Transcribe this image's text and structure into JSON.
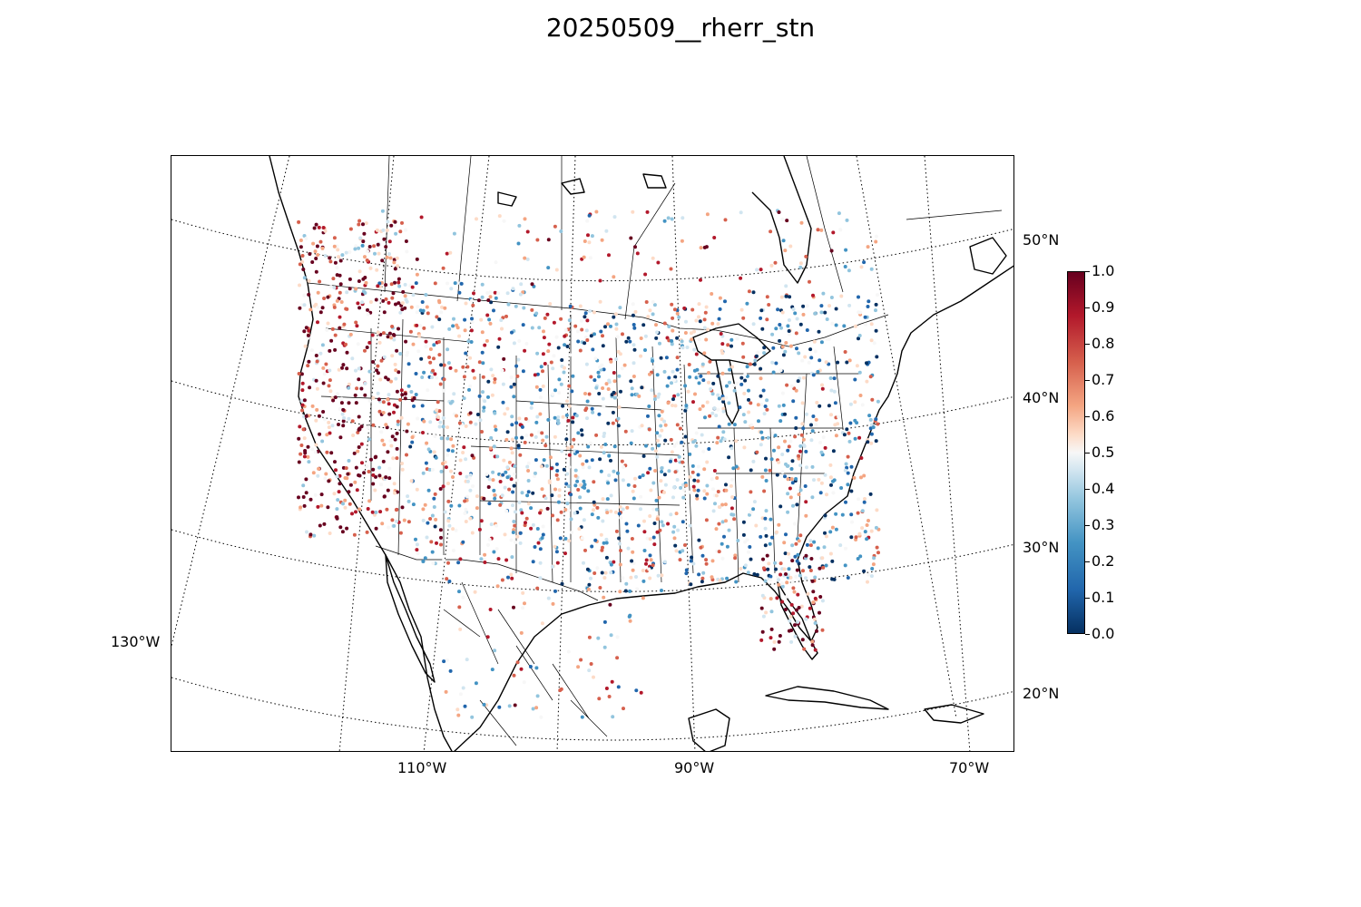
{
  "title": "20250509__rherr_stn",
  "lat_labels": [
    "50°N",
    "40°N",
    "30°N",
    "20°N"
  ],
  "lon_labels": [
    "130°W",
    "110°W",
    "90°W",
    "70°W"
  ],
  "colorbar": {
    "ticks": [
      "1.0",
      "0.9",
      "0.8",
      "0.7",
      "0.6",
      "0.5",
      "0.4",
      "0.3",
      "0.2",
      "0.1",
      "0.0"
    ],
    "min": 0.0,
    "max": 1.0,
    "colormap": "RdBu_r",
    "colors": [
      "#053061",
      "#2166ac",
      "#4393c3",
      "#92c5de",
      "#d1e5f0",
      "#f7f7f7",
      "#fddbc7",
      "#f4a582",
      "#d6604d",
      "#b2182b",
      "#67001f"
    ]
  },
  "map": {
    "projection": "lambert conformal",
    "region": "North America (CONUS, southern Canada, Mexico, Caribbean)",
    "graticule": "dotted",
    "markers": "station dots colored by value"
  }
}
